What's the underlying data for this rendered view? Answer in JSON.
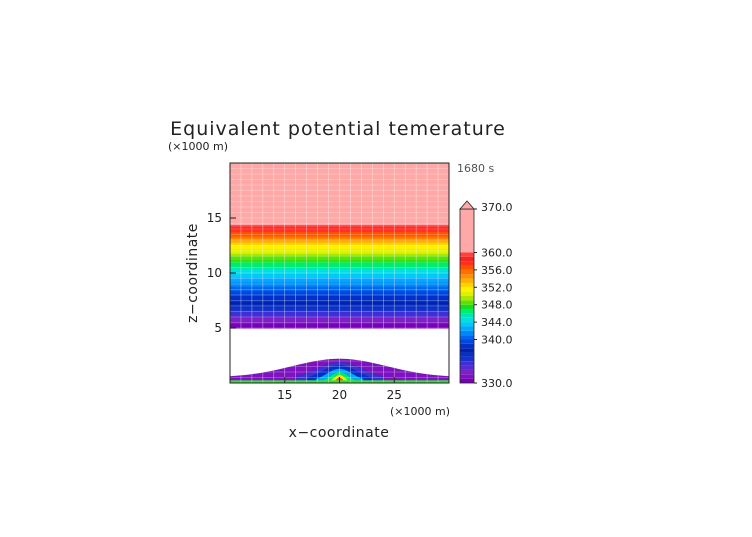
{
  "chart_data": {
    "type": "heatmap",
    "title": "Equivalent potential temerature",
    "xlabel": "x−coordinate",
    "ylabel": "z−coordinate",
    "x_unit": "(×1000 m)",
    "y_unit": "(×1000 m)",
    "time_label": "1680 s",
    "xlim": [
      10,
      30
    ],
    "ylim": [
      0,
      20
    ],
    "x_ticks": [
      "15",
      "20",
      "25"
    ],
    "x_tick_values": [
      15,
      20,
      25
    ],
    "y_ticks": [
      "5",
      "10",
      "15"
    ],
    "y_tick_values": [
      5,
      10,
      15
    ],
    "grid": true,
    "colorbar": {
      "min": 330.0,
      "max": 370.0,
      "extend": "max",
      "levels": [
        330,
        331,
        332,
        333,
        334,
        335,
        336,
        337,
        338,
        339,
        340,
        341,
        342,
        343,
        344,
        345,
        346,
        347,
        348,
        349,
        350,
        351,
        352,
        353,
        354,
        355,
        356,
        357,
        358,
        359,
        360,
        370
      ],
      "labels": [
        "330.0",
        "340.0",
        "344.0",
        "348.0",
        "352.0",
        "356.0",
        "360.0",
        "370.0"
      ],
      "label_values": [
        330,
        340,
        344,
        348,
        352,
        356,
        360,
        370
      ],
      "colors": [
        "#7a00b8",
        "#7e12c0",
        "#7a22c8",
        "#5a2ad0",
        "#3a30d4",
        "#1a30cc",
        "#0a30c0",
        "#0020b0",
        "#0030c8",
        "#0048dc",
        "#0064ee",
        "#0088f8",
        "#00a8ff",
        "#00c8f8",
        "#00e0e0",
        "#00e8b0",
        "#00ec70",
        "#10e020",
        "#60e000",
        "#a8e800",
        "#e0f000",
        "#fff000",
        "#ffd400",
        "#ffb000",
        "#ff9000",
        "#ff7000",
        "#ff5000",
        "#ff3020",
        "#ff2020",
        "#ff4040",
        "#ffa8a8"
      ]
    },
    "profile": {
      "description_values_by_height_km": [
        {
          "z": 5.0,
          "value": 330.0
        },
        {
          "z": 7.5,
          "value": 338.0
        },
        {
          "z": 10.0,
          "value": 344.0
        },
        {
          "z": 12.5,
          "value": 352.0
        },
        {
          "z": 14.9,
          "value": 362.0
        },
        {
          "z": 15.5,
          "value": 370.0
        }
      ],
      "uniform_above_km": 15.5,
      "uniform_value": 370.5,
      "blank_between_km": [
        0.6,
        5.0
      ],
      "surface_layer_top_km": 0.5,
      "bubble": {
        "x_center": 20,
        "top_km": 2.2,
        "width_km": 18,
        "core_value": 356.0
      }
    }
  }
}
